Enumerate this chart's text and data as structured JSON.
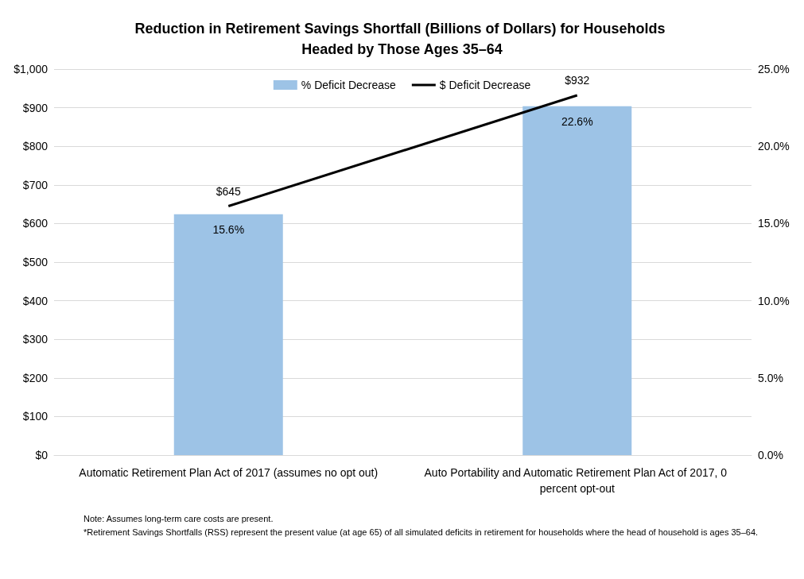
{
  "chart_data": {
    "type": "bar",
    "title": "Reduction in Retirement Savings Shortfall (Billions of Dollars) for Households Headed by Those Ages 35–64",
    "categories": [
      "Automatic Retirement Plan Act of 2017 (assumes no opt out)",
      "Auto Portability and Automatic Retirement Plan Act of 2017, 0 percent opt-out"
    ],
    "series": [
      {
        "name": "% Deficit Decrease",
        "axis": "y2",
        "color": "#9dc3e6",
        "values": [
          15.6,
          22.6
        ],
        "value_labels": [
          "15.6%",
          "22.6%"
        ]
      },
      {
        "name": "$ Deficit Decrease",
        "type": "line",
        "color": "#000000",
        "values": [
          645,
          932
        ],
        "value_labels": [
          "$645",
          "$932"
        ]
      }
    ],
    "ylim": [
      0,
      1000
    ],
    "yticks": [
      {
        "value": 0,
        "label": "$0"
      },
      {
        "value": 100,
        "label": "$100"
      },
      {
        "value": 200,
        "label": "$200"
      },
      {
        "value": 300,
        "label": "$300"
      },
      {
        "value": 400,
        "label": "$400"
      },
      {
        "value": 500,
        "label": "$500"
      },
      {
        "value": 600,
        "label": "$600"
      },
      {
        "value": 700,
        "label": "$700"
      },
      {
        "value": 800,
        "label": "$800"
      },
      {
        "value": 900,
        "label": "$900"
      },
      {
        "value": 1000,
        "label": "$1,000"
      }
    ],
    "y2lim": [
      0,
      25
    ],
    "y2ticks": [
      {
        "value": 0,
        "label": "0.0%"
      },
      {
        "value": 5,
        "label": "5.0%"
      },
      {
        "value": 10,
        "label": "10.0%"
      },
      {
        "value": 15,
        "label": "15.0%"
      },
      {
        "value": 20,
        "label": "20.0%"
      },
      {
        "value": 25,
        "label": "25.0%"
      }
    ],
    "grid": "y",
    "legend": "top",
    "marker": "none",
    "line_style": "solid",
    "annotations": [
      "Note: Assumes long-term care costs are present.",
      "*Retirement Savings Shortfalls (RSS) represent the present value (at age 65) of all simulated deficits in retirement for households where the head of household is ages 35–64."
    ]
  }
}
